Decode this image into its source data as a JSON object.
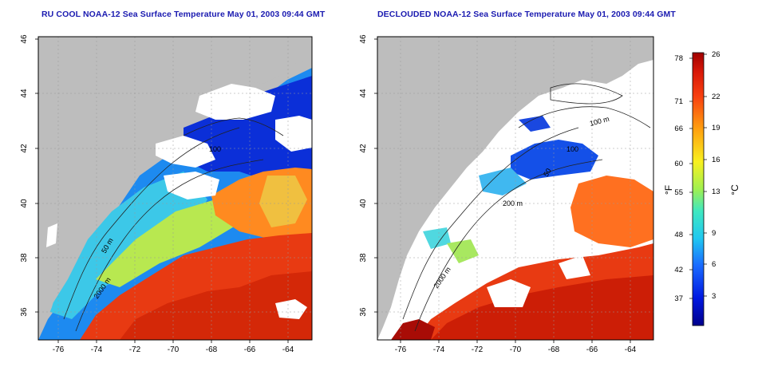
{
  "titles": {
    "left": "RU COOL NOAA-12 Sea Surface Temperature May 01, 2003 09:44 GMT",
    "right": "DECLOUDED NOAA-12 Sea Surface Temperature May 01, 2003 09:44 GMT"
  },
  "axes": {
    "longitude_ticks": [
      "-76",
      "-74",
      "-72",
      "-70",
      "-68",
      "-66",
      "-64"
    ],
    "latitude_ticks": [
      "46",
      "44",
      "42",
      "40",
      "38",
      "36"
    ]
  },
  "contours_left": [
    "100",
    "50 m",
    "2000 m",
    "50 m"
  ],
  "contours_right": [
    "100 m",
    "100",
    "50",
    "200 m",
    "2000 m",
    "50"
  ],
  "colorbar": {
    "fahrenheit_label": "°F",
    "celsius_label": "°C",
    "fahrenheit_ticks": [
      "78",
      "71",
      "66",
      "60",
      "55",
      "48",
      "42",
      "37"
    ],
    "celsius_ticks": [
      "26",
      "22",
      "19",
      "16",
      "13",
      "9",
      "6",
      "3"
    ]
  },
  "colors": {
    "title": "#1a1ab0",
    "land": "#bdbdbd",
    "cold": "#0a1fcf",
    "warm": "#e8320f",
    "hot": "#c01008"
  }
}
